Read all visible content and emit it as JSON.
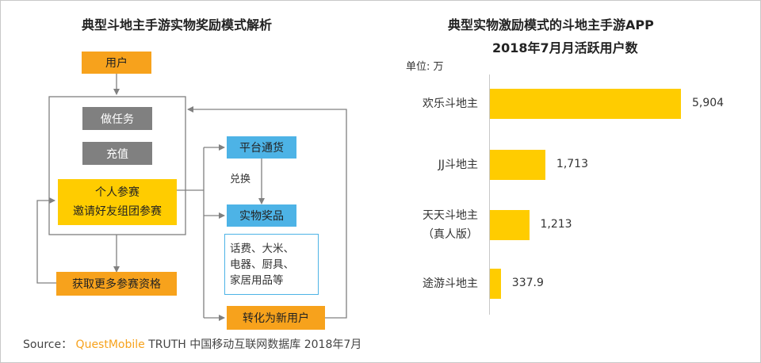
{
  "diagram": {
    "title": "典型斗地主手游实物奖励模式解析",
    "user": "用户",
    "tasks": [
      "做任务",
      "充值"
    ],
    "compete": [
      "个人参赛",
      "邀请好友组团参赛"
    ],
    "platform_currency": "平台通货",
    "exchange": "兑换",
    "physical_prize": "实物奖品",
    "prize_examples": [
      "话费、大米、",
      "电器、厨具、",
      "家居用品等"
    ],
    "more_qualification": "获取更多参赛资格",
    "new_user": "转化为新用户"
  },
  "chart": {
    "title_line1": "典型实物激励模式的斗地主手游APP",
    "title_line2": "2018年7月月活跃用户数",
    "unit": "单位: 万"
  },
  "chart_data": {
    "type": "bar",
    "orientation": "horizontal",
    "title": "典型实物激励模式的斗地主手游APP 2018年7月月活跃用户数",
    "unit": "万",
    "categories": [
      [
        "欢乐斗地主"
      ],
      [
        "JJ斗地主"
      ],
      [
        "天天斗地主",
        "（真人版）"
      ],
      [
        "途游斗地主"
      ]
    ],
    "values": [
      5904,
      1713,
      1213,
      337.9
    ],
    "value_labels": [
      "5,904",
      "1,713",
      "1,213",
      "337.9"
    ],
    "xlim": [
      0,
      6000
    ],
    "color": "#ffcc00"
  },
  "source": {
    "prefix": "Source：",
    "brand": "QuestMobile",
    "rest": "TRUTH 中国移动互联网数据库 2018年7月"
  },
  "colors": {
    "grey": "#808080",
    "orange": "#f7a21c",
    "blue": "#4db3e6",
    "yellow": "#ffcc00",
    "line": "#808080"
  }
}
